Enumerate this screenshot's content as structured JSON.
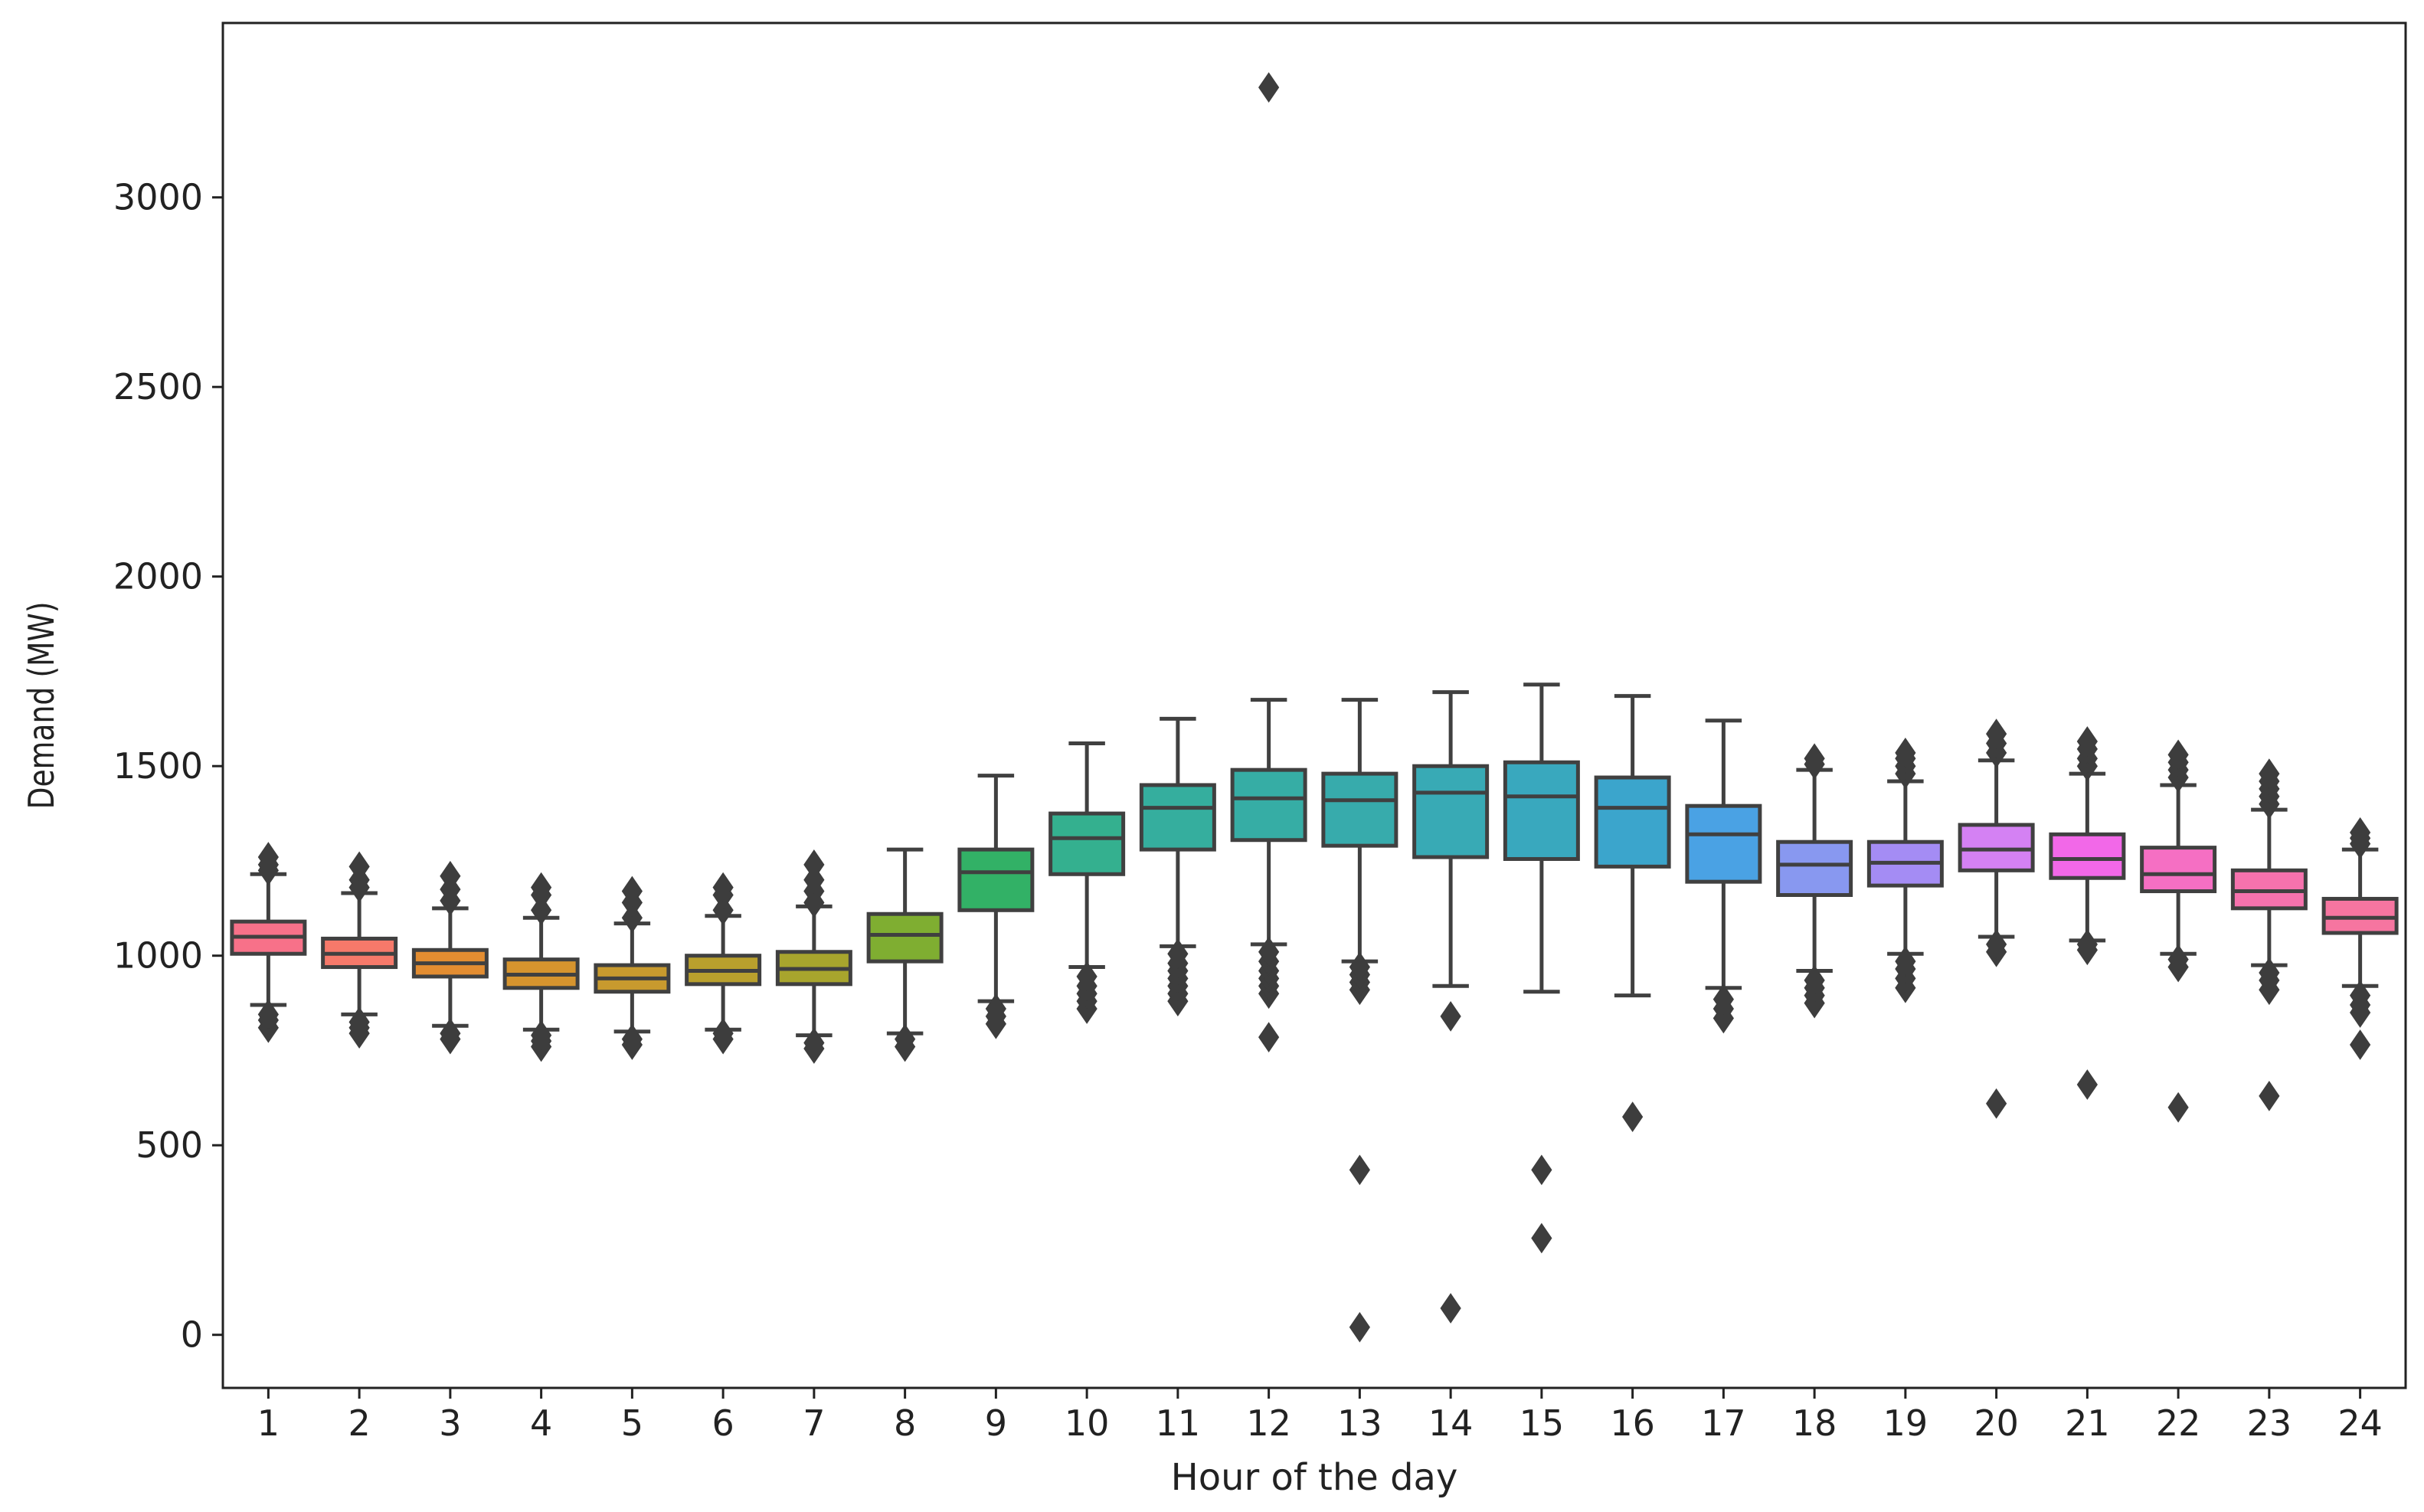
{
  "chart_data": {
    "type": "box",
    "title": "",
    "xlabel": "Hour of the day",
    "ylabel": "Demand (MW)",
    "ylim": [
      -140,
      3460
    ],
    "yticks": [
      0,
      500,
      1000,
      1500,
      2000,
      2500,
      3000
    ],
    "grid": false,
    "colors": [
      "#f77189",
      "#f6796a",
      "#e38d31",
      "#d6942e",
      "#c89a2e",
      "#b9a02d",
      "#a8a52d",
      "#7fae31",
      "#32b166",
      "#34b08f",
      "#35ae9e",
      "#36ada5",
      "#37abac",
      "#38aab5",
      "#39a8be",
      "#3ba5cc",
      "#4aa2e4",
      "#8898f0",
      "#a48cf4",
      "#d481f3",
      "#f268e8",
      "#f56fc3",
      "#f672ad",
      "#f675a0"
    ],
    "categories": [
      "1",
      "2",
      "3",
      "4",
      "5",
      "6",
      "7",
      "8",
      "9",
      "10",
      "11",
      "12",
      "13",
      "14",
      "15",
      "16",
      "17",
      "18",
      "19",
      "20",
      "21",
      "22",
      "23",
      "24"
    ],
    "boxes": [
      {
        "label": "1",
        "q1": 1005,
        "median": 1050,
        "q3": 1090,
        "whisker_low": 870,
        "whisker_high": 1215,
        "outliers": [
          810,
          830,
          845,
          1225,
          1240,
          1260
        ]
      },
      {
        "label": "2",
        "q1": 970,
        "median": 1005,
        "q3": 1045,
        "whisker_low": 845,
        "whisker_high": 1165,
        "outliers": [
          795,
          810,
          825,
          1180,
          1200,
          1235
        ]
      },
      {
        "label": "3",
        "q1": 945,
        "median": 980,
        "q3": 1015,
        "whisker_low": 815,
        "whisker_high": 1125,
        "outliers": [
          780,
          795,
          1145,
          1175,
          1210
        ]
      },
      {
        "label": "4",
        "q1": 915,
        "median": 950,
        "q3": 990,
        "whisker_low": 805,
        "whisker_high": 1100,
        "outliers": [
          760,
          775,
          790,
          1120,
          1160,
          1180
        ]
      },
      {
        "label": "5",
        "q1": 905,
        "median": 940,
        "q3": 975,
        "whisker_low": 800,
        "whisker_high": 1085,
        "outliers": [
          765,
          780,
          1100,
          1140,
          1170
        ]
      },
      {
        "label": "6",
        "q1": 925,
        "median": 960,
        "q3": 1000,
        "whisker_low": 805,
        "whisker_high": 1105,
        "outliers": [
          780,
          795,
          1120,
          1160,
          1180
        ]
      },
      {
        "label": "7",
        "q1": 925,
        "median": 965,
        "q3": 1010,
        "whisker_low": 790,
        "whisker_high": 1130,
        "outliers": [
          755,
          770,
          1140,
          1170,
          1200,
          1240
        ]
      },
      {
        "label": "8",
        "q1": 985,
        "median": 1055,
        "q3": 1110,
        "whisker_low": 795,
        "whisker_high": 1280,
        "outliers": [
          760,
          780
        ]
      },
      {
        "label": "9",
        "q1": 1120,
        "median": 1220,
        "q3": 1280,
        "whisker_low": 880,
        "whisker_high": 1475,
        "outliers": [
          820,
          840,
          860
        ]
      },
      {
        "label": "10",
        "q1": 1215,
        "median": 1310,
        "q3": 1375,
        "whisker_low": 970,
        "whisker_high": 1560,
        "outliers": [
          860,
          880,
          900,
          920,
          945
        ]
      },
      {
        "label": "11",
        "q1": 1280,
        "median": 1390,
        "q3": 1450,
        "whisker_low": 1025,
        "whisker_high": 1625,
        "outliers": [
          880,
          900,
          920,
          940,
          960,
          980,
          1005
        ]
      },
      {
        "label": "12",
        "q1": 1305,
        "median": 1415,
        "q3": 1490,
        "whisker_low": 1030,
        "whisker_high": 1675,
        "outliers": [
          785,
          900,
          920,
          940,
          960,
          985,
          1010,
          3290
        ]
      },
      {
        "label": "13",
        "q1": 1290,
        "median": 1410,
        "q3": 1480,
        "whisker_low": 985,
        "whisker_high": 1675,
        "outliers": [
          20,
          435,
          910,
          930,
          950,
          970
        ]
      },
      {
        "label": "14",
        "q1": 1260,
        "median": 1430,
        "q3": 1500,
        "whisker_low": 920,
        "whisker_high": 1695,
        "outliers": [
          70,
          840
        ]
      },
      {
        "label": "15",
        "q1": 1255,
        "median": 1420,
        "q3": 1510,
        "whisker_low": 905,
        "whisker_high": 1715,
        "outliers": [
          255,
          435
        ]
      },
      {
        "label": "16",
        "q1": 1235,
        "median": 1390,
        "q3": 1470,
        "whisker_low": 895,
        "whisker_high": 1685,
        "outliers": [
          575
        ]
      },
      {
        "label": "17",
        "q1": 1195,
        "median": 1320,
        "q3": 1395,
        "whisker_low": 915,
        "whisker_high": 1620,
        "outliers": [
          835,
          860,
          885
        ]
      },
      {
        "label": "18",
        "q1": 1160,
        "median": 1240,
        "q3": 1300,
        "whisker_low": 960,
        "whisker_high": 1490,
        "outliers": [
          875,
          895,
          915,
          935,
          1505,
          1520
        ]
      },
      {
        "label": "19",
        "q1": 1185,
        "median": 1245,
        "q3": 1300,
        "whisker_low": 1005,
        "whisker_high": 1460,
        "outliers": [
          915,
          940,
          965,
          985,
          1480,
          1500,
          1520,
          1535
        ]
      },
      {
        "label": "20",
        "q1": 1225,
        "median": 1280,
        "q3": 1345,
        "whisker_low": 1050,
        "whisker_high": 1515,
        "outliers": [
          610,
          1010,
          1030,
          1535,
          1560,
          1585
        ]
      },
      {
        "label": "21",
        "q1": 1205,
        "median": 1255,
        "q3": 1320,
        "whisker_low": 1040,
        "whisker_high": 1480,
        "outliers": [
          660,
          1015,
          1030,
          1500,
          1520,
          1545,
          1565
        ]
      },
      {
        "label": "22",
        "q1": 1170,
        "median": 1215,
        "q3": 1285,
        "whisker_low": 1005,
        "whisker_high": 1450,
        "outliers": [
          600,
          970,
          990,
          1470,
          1490,
          1510,
          1530
        ]
      },
      {
        "label": "23",
        "q1": 1125,
        "median": 1170,
        "q3": 1225,
        "whisker_low": 975,
        "whisker_high": 1385,
        "outliers": [
          630,
          910,
          935,
          955,
          1400,
          1420,
          1440,
          1460,
          1480
        ]
      },
      {
        "label": "24",
        "q1": 1060,
        "median": 1100,
        "q3": 1150,
        "whisker_low": 920,
        "whisker_high": 1280,
        "outliers": [
          765,
          850,
          870,
          895,
          1295,
          1310,
          1325
        ]
      }
    ]
  }
}
